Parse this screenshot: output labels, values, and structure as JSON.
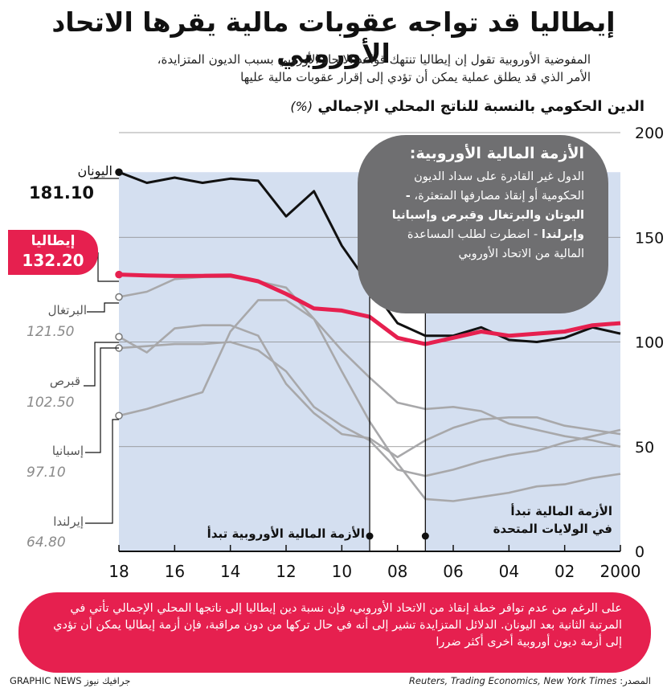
{
  "title": "إيطاليا قد تواجه عقوبات مالية يقرها الاتحاد الأوروبي",
  "subtitle_line1": "المفوضية الأوروبية تقول إن إيطاليا تنتهك قواعد الاتحاد الأوروبي بسبب الديون المتزايدة،",
  "subtitle_line2": "الأمر الذي قد يطلق عملية يمكن أن تؤدي إلى إقرار عقوبات مالية عليها",
  "axis_title": "الدين الحكومي بالنسبة للناتج المحلي الإجمالي",
  "axis_unit": "(%)",
  "bubble": {
    "title": "الأزمة المالية الأوروبية:",
    "text1": "الدول غير القادرة على سداد الديون الحكومية أو إنقاذ مصارفها المتعثرة،",
    "text2": "- اليونان والبرتغال وقبرص وإسبانيا وإيرلندا",
    "text3": "- اضطرت لطلب المساعدة المالية من الاتحاد الأوروبي"
  },
  "annotations": {
    "eu_crisis": "الأزمة المالية الأوروبية تبدأ",
    "us_crisis_line1": "الأزمة المالية تبدأ",
    "us_crisis_line2": "في الولايات المتحدة"
  },
  "labels": {
    "greece_name": "اليونان",
    "greece_val": "181.10",
    "italy_name": "إيطاليا",
    "italy_val": "132.20",
    "portugal_name": "البرتغال",
    "portugal_val": "121.50",
    "cyprus_name": "قبرص",
    "cyprus_val": "102.50",
    "spain_name": "إسبانيا",
    "spain_val": "97.10",
    "ireland_name": "إيرلندا",
    "ireland_val": "64.80"
  },
  "footer": "على الرغم من عدم توافر خطة إنقاذ من الاتحاد الأوروبي، فإن نسبة دين إيطاليا إلى ناتجها المحلي الإجمالي تأتي في المرتبة الثانية بعد اليونان. الدلائل المتزايدة تشير إلى أنه في حال تركها من دون مراقبة، فإن أزمة إيطاليا يمكن أن تؤدي إلى أزمة ديون أوروبية أخرى أكثر ضررا",
  "source_label": "المصدر:",
  "source_text": "Reuters, Trading Economics, New York Times",
  "credit": "GRAPHIC NEWS جرافيك نيوز",
  "colors": {
    "italy": "#e6204f",
    "greece": "#111111",
    "others": "#a8a8aa",
    "shade": "#d4dff0",
    "bubble": "#6f6f71"
  },
  "chart_data": {
    "type": "line",
    "xlim": [
      2018,
      2000
    ],
    "x_reversed": true,
    "ylim": [
      0,
      200
    ],
    "y_ticks": [
      0,
      50,
      100,
      150,
      200
    ],
    "x_tick_labels": [
      "18",
      "16",
      "14",
      "12",
      "10",
      "08",
      "06",
      "04",
      "02",
      "2000"
    ],
    "x_ticks": [
      2018,
      2016,
      2014,
      2012,
      2010,
      2008,
      2006,
      2004,
      2002,
      2000
    ],
    "shaded_ranges": [
      [
        2018,
        2009
      ],
      [
        2007,
        2000
      ]
    ],
    "markers": [
      2009,
      2007
    ],
    "x": [
      2018,
      2017,
      2016,
      2015,
      2014,
      2013,
      2012,
      2011,
      2010,
      2009,
      2008,
      2007,
      2006,
      2005,
      2004,
      2003,
      2002,
      2001,
      2000
    ],
    "series": [
      {
        "name": "اليونان",
        "values": [
          181.1,
          176.0,
          178.5,
          176.0,
          178.0,
          177.0,
          160.0,
          172.0,
          146.0,
          127.0,
          109.0,
          103.0,
          103.0,
          107.0,
          101.0,
          100.0,
          102.0,
          107.0,
          104.0
        ]
      },
      {
        "name": "إيطاليا",
        "values": [
          132.2,
          131.8,
          131.5,
          131.6,
          131.8,
          129.0,
          123.0,
          116.0,
          115.0,
          112.0,
          102.0,
          99.0,
          102.0,
          105.0,
          103.0,
          104.0,
          105.0,
          108.0,
          109.0
        ]
      },
      {
        "name": "البرتغال",
        "values": [
          121.5,
          124.0,
          130.0,
          131.0,
          131.0,
          129.0,
          126.0,
          111.0,
          96.0,
          83.0,
          71.0,
          68.0,
          69.0,
          67.0,
          61.0,
          58.0,
          55.0,
          53.0,
          50.0
        ]
      },
      {
        "name": "قبرص",
        "values": [
          102.5,
          95.0,
          106.5,
          108.0,
          108.0,
          103.0,
          80.0,
          66.0,
          56.0,
          54.0,
          45.0,
          53.0,
          59.0,
          63.0,
          64.0,
          64.0,
          60.0,
          58.0,
          56.0
        ]
      },
      {
        "name": "إسبانيا",
        "values": [
          97.1,
          98.0,
          99.0,
          99.0,
          100.0,
          96.0,
          86.0,
          69.0,
          60.0,
          53.0,
          39.0,
          36.0,
          39.0,
          43.0,
          46.0,
          48.0,
          52.0,
          55.0,
          58.0
        ]
      },
      {
        "name": "إيرلندا",
        "values": [
          64.8,
          68.0,
          72.0,
          76.0,
          105.0,
          120.0,
          120.0,
          111.0,
          86.0,
          62.0,
          42.0,
          25.0,
          24.0,
          26.0,
          28.0,
          31.0,
          32.0,
          35.0,
          37.0
        ]
      }
    ]
  }
}
